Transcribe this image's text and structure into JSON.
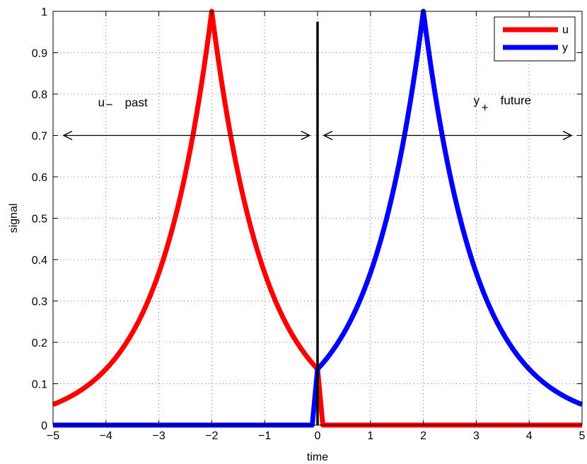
{
  "chart_data": {
    "type": "line",
    "title": "",
    "xlabel": "time",
    "ylabel": "signal",
    "xlim": [
      -5,
      5
    ],
    "ylim": [
      0,
      1
    ],
    "xticks": [
      -5,
      -4,
      -3,
      -2,
      -1,
      0,
      1,
      2,
      3,
      4,
      5
    ],
    "yticks": [
      0,
      0.1,
      0.2,
      0.3,
      0.4,
      0.5,
      0.6,
      0.7,
      0.8,
      0.9,
      1
    ],
    "xtick_labels": [
      "−5",
      "−4",
      "−3",
      "−2",
      "−1",
      "0",
      "1",
      "2",
      "3",
      "4",
      "5"
    ],
    "ytick_labels": [
      "0",
      "0.1",
      "0.2",
      "0.3",
      "0.4",
      "0.5",
      "0.6",
      "0.7",
      "0.8",
      "0.9",
      "1"
    ],
    "grid": true,
    "legend_position": "top-right",
    "series": [
      {
        "name": "u",
        "color": "#ff0000",
        "x": [
          -5,
          -4.5,
          -4,
          -3.5,
          -3,
          -2.5,
          -2,
          -1.5,
          -1,
          -0.5,
          0,
          0.1,
          5
        ],
        "y": [
          0.05,
          0.082,
          0.135,
          0.223,
          0.368,
          0.607,
          1.0,
          0.607,
          0.368,
          0.223,
          0.135,
          0,
          0
        ]
      },
      {
        "name": "y",
        "color": "#0000ff",
        "x": [
          -5,
          -0.1,
          0,
          0.5,
          1,
          1.5,
          2,
          2.5,
          3,
          3.5,
          4,
          4.5,
          5
        ],
        "y": [
          0,
          0,
          0.135,
          0.223,
          0.368,
          0.607,
          1.0,
          0.607,
          0.368,
          0.223,
          0.135,
          0.082,
          0.05
        ]
      }
    ],
    "vertical_line": {
      "x": 0,
      "y_from": 0,
      "y_to": 0.975,
      "color": "#000000"
    },
    "arrows": [
      {
        "from": [
          -4.8,
          0.7
        ],
        "to": [
          -0.15,
          0.7
        ]
      },
      {
        "from": [
          0.12,
          0.7
        ],
        "to": [
          4.8,
          0.7
        ]
      }
    ],
    "annotations": [
      {
        "main": "u",
        "sub": "−",
        "rest": "past",
        "x": -4.15,
        "y": 0.77,
        "subscript_below": false
      },
      {
        "main": "y",
        "sub": "+",
        "rest": "future",
        "x": 2.95,
        "y": 0.775,
        "subscript_below": true
      }
    ]
  }
}
